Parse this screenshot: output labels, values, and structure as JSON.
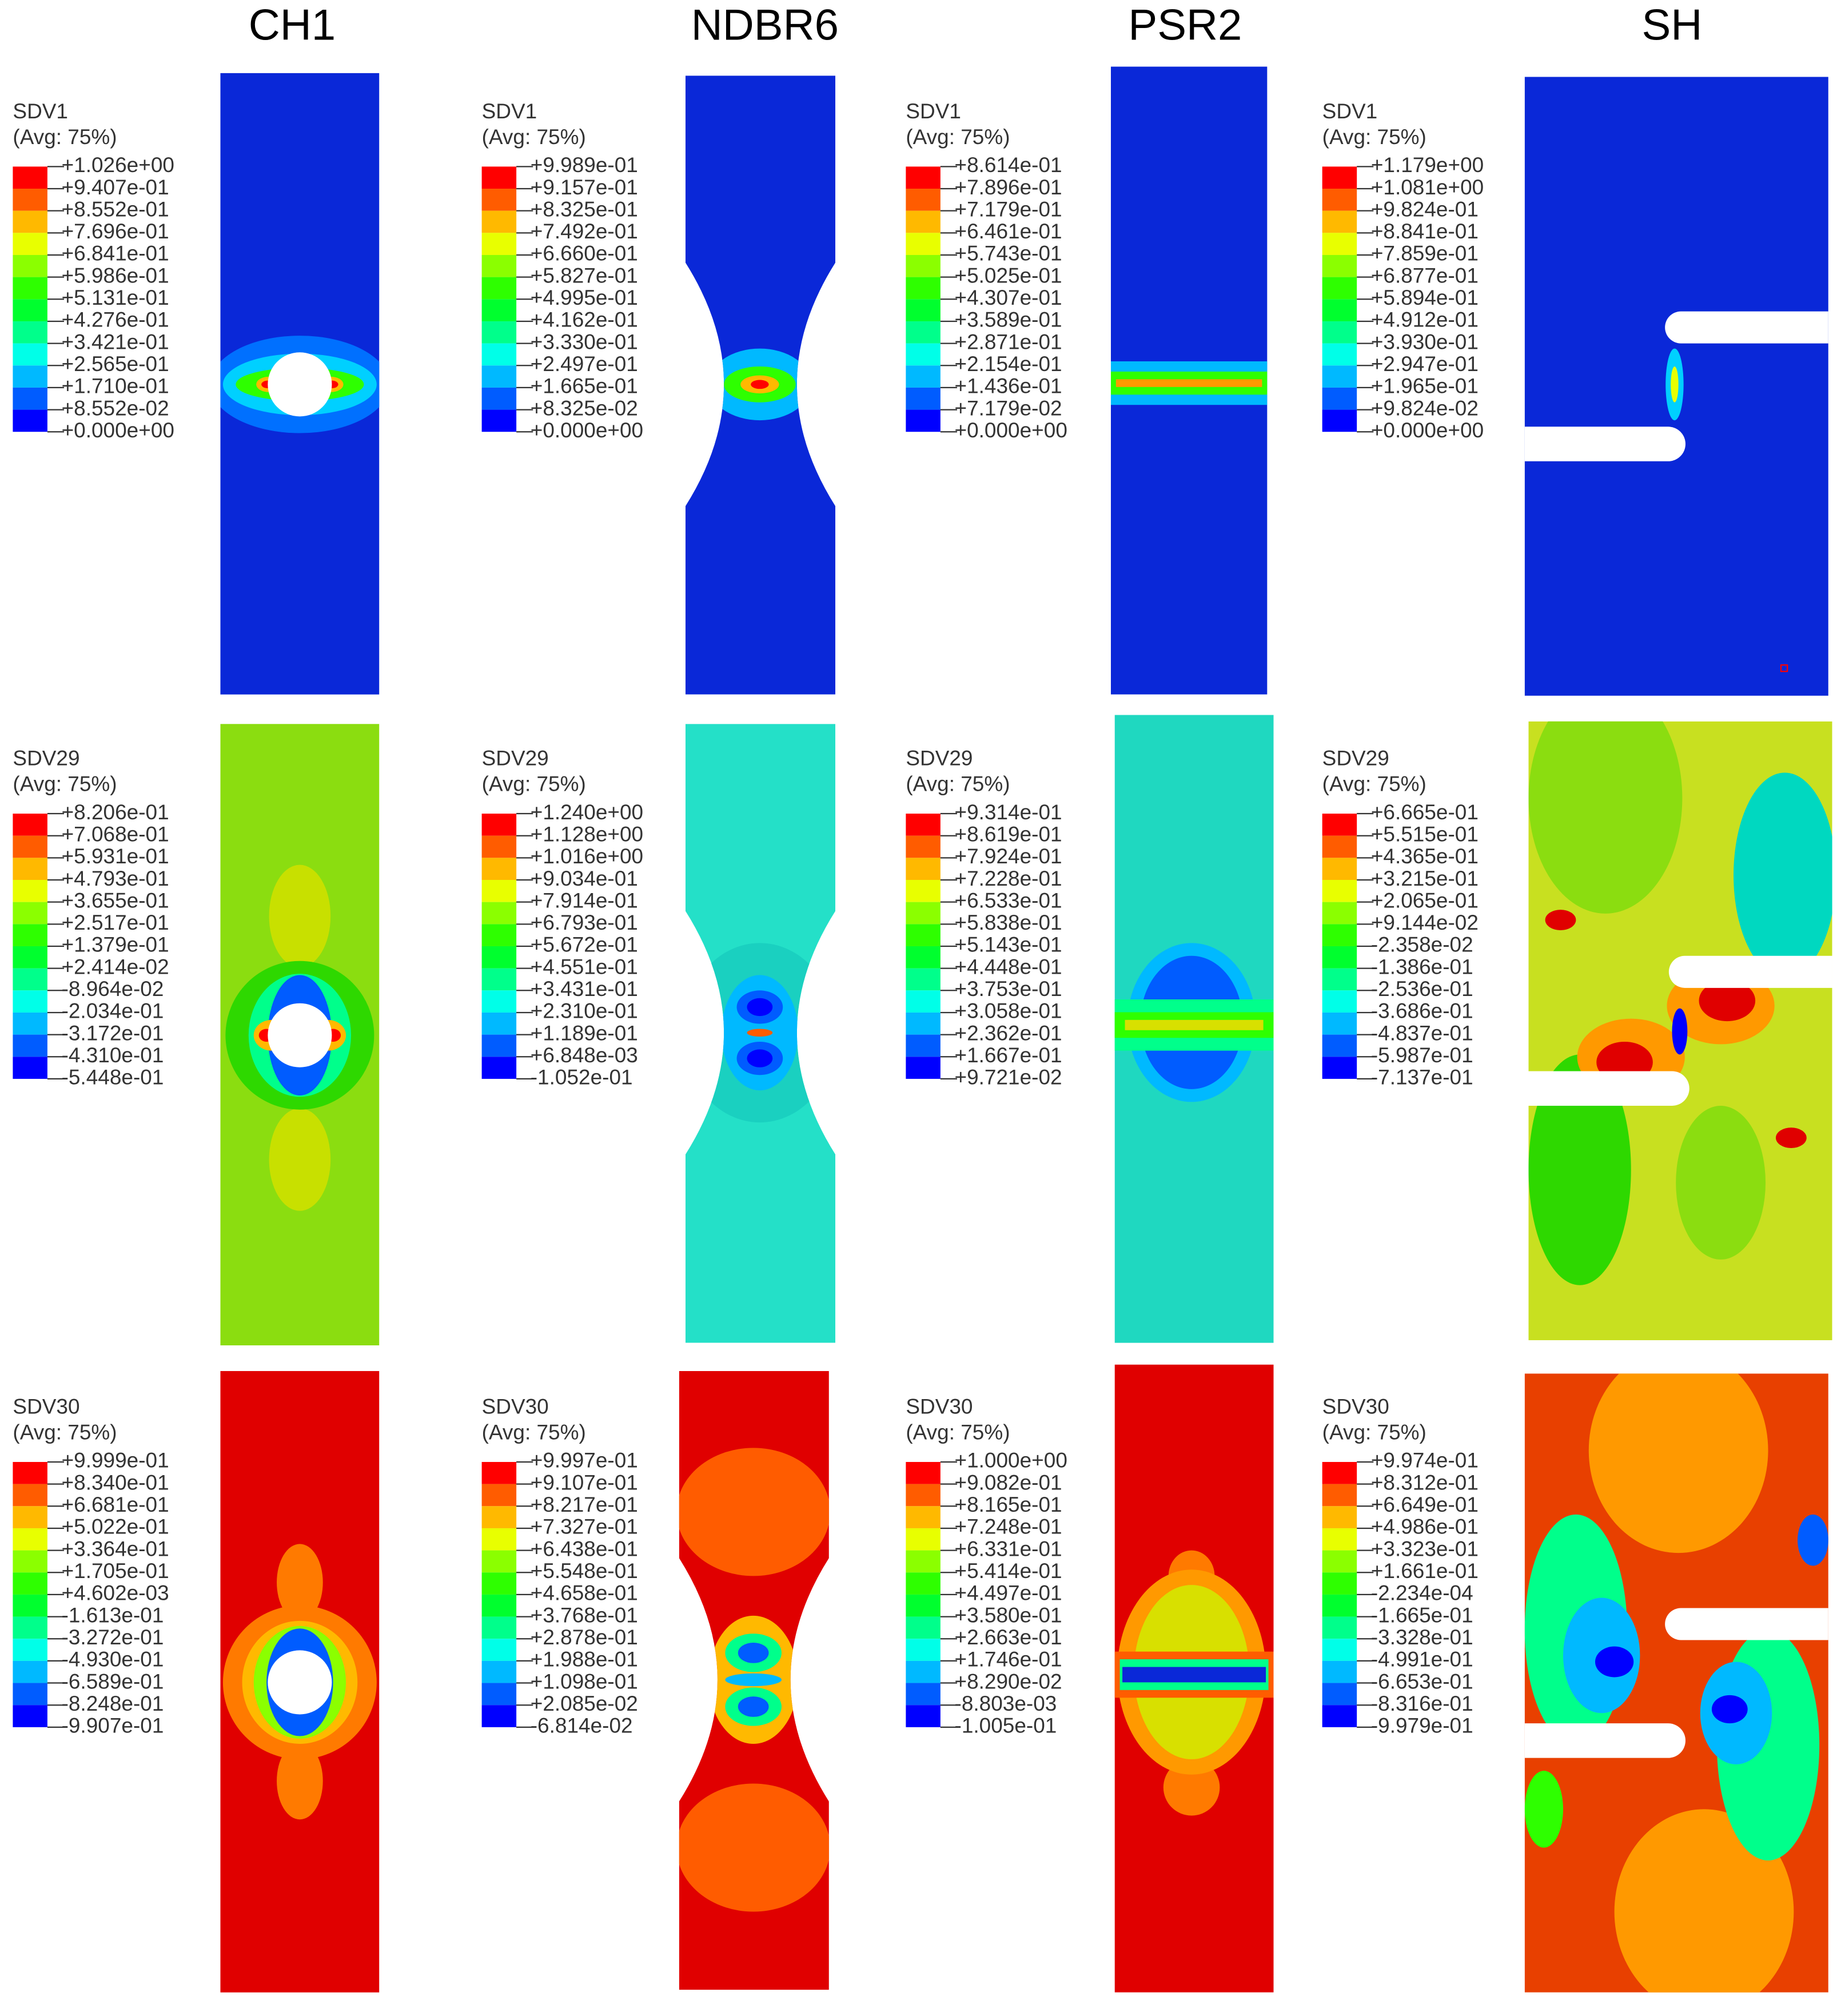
{
  "columns": [
    "CH1",
    "NDBR6",
    "PSR2",
    "SH"
  ],
  "rows": [
    {
      "panels": [
        {
          "variable": "SDV1",
          "avg": "(Avg: 75%)",
          "labels": [
            "+1.026e+00",
            "+9.407e-01",
            "+8.552e-01",
            "+7.696e-01",
            "+6.841e-01",
            "+5.986e-01",
            "+5.131e-01",
            "+4.276e-01",
            "+3.421e-01",
            "+2.565e-01",
            "+1.710e-01",
            "+8.552e-02",
            "+0.000e+00"
          ]
        },
        {
          "variable": "SDV1",
          "avg": "(Avg: 75%)",
          "labels": [
            "+9.989e-01",
            "+9.157e-01",
            "+8.325e-01",
            "+7.492e-01",
            "+6.660e-01",
            "+5.827e-01",
            "+4.995e-01",
            "+4.162e-01",
            "+3.330e-01",
            "+2.497e-01",
            "+1.665e-01",
            "+8.325e-02",
            "+0.000e+00"
          ]
        },
        {
          "variable": "SDV1",
          "avg": "(Avg: 75%)",
          "labels": [
            "+8.614e-01",
            "+7.896e-01",
            "+7.179e-01",
            "+6.461e-01",
            "+5.743e-01",
            "+5.025e-01",
            "+4.307e-01",
            "+3.589e-01",
            "+2.871e-01",
            "+2.154e-01",
            "+1.436e-01",
            "+7.179e-02",
            "+0.000e+00"
          ]
        },
        {
          "variable": "SDV1",
          "avg": "(Avg: 75%)",
          "labels": [
            "+1.179e+00",
            "+1.081e+00",
            "+9.824e-01",
            "+8.841e-01",
            "+7.859e-01",
            "+6.877e-01",
            "+5.894e-01",
            "+4.912e-01",
            "+3.930e-01",
            "+2.947e-01",
            "+1.965e-01",
            "+9.824e-02",
            "+0.000e+00"
          ]
        }
      ]
    },
    {
      "panels": [
        {
          "variable": "SDV29",
          "avg": "(Avg: 75%)",
          "labels": [
            "+8.206e-01",
            "+7.068e-01",
            "+5.931e-01",
            "+4.793e-01",
            "+3.655e-01",
            "+2.517e-01",
            "+1.379e-01",
            "+2.414e-02",
            "-8.964e-02",
            "-2.034e-01",
            "-3.172e-01",
            "-4.310e-01",
            "-5.448e-01"
          ]
        },
        {
          "variable": "SDV29",
          "avg": "(Avg: 75%)",
          "labels": [
            "+1.240e+00",
            "+1.128e+00",
            "+1.016e+00",
            "+9.034e-01",
            "+7.914e-01",
            "+6.793e-01",
            "+5.672e-01",
            "+4.551e-01",
            "+3.431e-01",
            "+2.310e-01",
            "+1.189e-01",
            "+6.848e-03",
            "-1.052e-01"
          ]
        },
        {
          "variable": "SDV29",
          "avg": "(Avg: 75%)",
          "labels": [
            "+9.314e-01",
            "+8.619e-01",
            "+7.924e-01",
            "+7.228e-01",
            "+6.533e-01",
            "+5.838e-01",
            "+5.143e-01",
            "+4.448e-01",
            "+3.753e-01",
            "+3.058e-01",
            "+2.362e-01",
            "+1.667e-01",
            "+9.721e-02"
          ]
        },
        {
          "variable": "SDV29",
          "avg": "(Avg: 75%)",
          "labels": [
            "+6.665e-01",
            "+5.515e-01",
            "+4.365e-01",
            "+3.215e-01",
            "+2.065e-01",
            "+9.144e-02",
            "-2.358e-02",
            "-1.386e-01",
            "-2.536e-01",
            "-3.686e-01",
            "-4.837e-01",
            "-5.987e-01",
            "-7.137e-01"
          ]
        }
      ]
    },
    {
      "panels": [
        {
          "variable": "SDV30",
          "avg": "(Avg: 75%)",
          "labels": [
            "+9.999e-01",
            "+8.340e-01",
            "+6.681e-01",
            "+5.022e-01",
            "+3.364e-01",
            "+1.705e-01",
            "+4.602e-03",
            "-1.613e-01",
            "-3.272e-01",
            "-4.930e-01",
            "-6.589e-01",
            "-8.248e-01",
            "-9.907e-01"
          ]
        },
        {
          "variable": "SDV30",
          "avg": "(Avg: 75%)",
          "labels": [
            "+9.997e-01",
            "+9.107e-01",
            "+8.217e-01",
            "+7.327e-01",
            "+6.438e-01",
            "+5.548e-01",
            "+4.658e-01",
            "+3.768e-01",
            "+2.878e-01",
            "+1.988e-01",
            "+1.098e-01",
            "+2.085e-02",
            "-6.814e-02"
          ]
        },
        {
          "variable": "SDV30",
          "avg": "(Avg: 75%)",
          "labels": [
            "+1.000e+00",
            "+9.082e-01",
            "+8.165e-01",
            "+7.248e-01",
            "+6.331e-01",
            "+5.414e-01",
            "+4.497e-01",
            "+3.580e-01",
            "+2.663e-01",
            "+1.746e-01",
            "+8.290e-02",
            "-8.803e-03",
            "-1.005e-01"
          ]
        },
        {
          "variable": "SDV30",
          "avg": "(Avg: 75%)",
          "labels": [
            "+9.974e-01",
            "+8.312e-01",
            "+6.649e-01",
            "+4.986e-01",
            "+3.323e-01",
            "+1.661e-01",
            "-2.234e-04",
            "-1.665e-01",
            "-3.328e-01",
            "-4.991e-01",
            "-6.653e-01",
            "-8.316e-01",
            "-9.979e-01"
          ]
        }
      ]
    }
  ]
}
